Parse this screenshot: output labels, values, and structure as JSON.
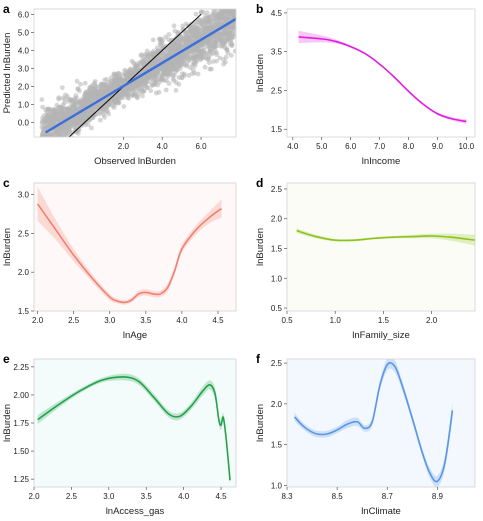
{
  "chart_data": [
    {
      "id": "a",
      "type": "scatter",
      "panel_label": "a",
      "xlabel": "Observed lnBurden",
      "ylabel": "Predicted lnBurden",
      "xlim": [
        -2.6,
        7.8
      ],
      "ylim": [
        -0.8,
        6.3
      ],
      "xticks": [
        "2.0",
        "4.0",
        "6.0"
      ],
      "xtick_values": [
        2,
        4,
        6
      ],
      "yticks": [
        "0.0",
        "1.0",
        "2.0",
        "3.0",
        "4.0",
        "5.0",
        "6.0"
      ],
      "ytick_values": [
        0,
        1,
        2,
        3,
        4,
        5,
        6
      ],
      "background": "#ffffff",
      "point_color": "#b5b5b5",
      "fit_line": {
        "color": "#3b6fdc",
        "x": [
          -2.0,
          7.8
        ],
        "y": [
          -0.55,
          5.75
        ]
      },
      "identity_line": {
        "color": "#111111",
        "x": [
          -0.8,
          6.0
        ],
        "y": [
          -0.8,
          6.0
        ]
      }
    },
    {
      "id": "b",
      "type": "line",
      "panel_label": "b",
      "xlabel": "lnIncome",
      "ylabel": "lnBurden",
      "xlim": [
        3.8,
        10.3
      ],
      "ylim": [
        1.3,
        4.6
      ],
      "xticks": [
        "4.0",
        "5.0",
        "6.0",
        "7.0",
        "8.0",
        "9.0",
        "10.0"
      ],
      "xtick_values": [
        4,
        5,
        6,
        7,
        8,
        9,
        10
      ],
      "yticks": [
        "1.5",
        "2.5",
        "3.5",
        "4.5"
      ],
      "ytick_values": [
        1.5,
        2.5,
        3.5,
        4.5
      ],
      "background": "#ffffff",
      "color": "#e01fe0",
      "band_color": "#e01fe0",
      "x": [
        4.2,
        5.0,
        5.5,
        6.0,
        6.5,
        7.0,
        7.5,
        8.0,
        8.5,
        9.0,
        9.5,
        10.0
      ],
      "y": [
        3.88,
        3.83,
        3.76,
        3.63,
        3.45,
        3.18,
        2.85,
        2.48,
        2.15,
        1.9,
        1.77,
        1.7
      ],
      "ci": [
        0.16,
        0.09,
        0.05,
        0.03,
        0.02,
        0.02,
        0.02,
        0.02,
        0.02,
        0.03,
        0.04,
        0.06
      ]
    },
    {
      "id": "c",
      "type": "line",
      "panel_label": "c",
      "xlabel": "lnAge",
      "ylabel": "lnBurden",
      "xlim": [
        1.95,
        4.75
      ],
      "ylim": [
        1.5,
        3.15
      ],
      "xticks": [
        "2.0",
        "2.5",
        "3.0",
        "3.5",
        "4.0",
        "4.5"
      ],
      "xtick_values": [
        2,
        2.5,
        3,
        3.5,
        4,
        4.5
      ],
      "yticks": [
        "1.5",
        "2.0",
        "2.5",
        "3.0"
      ],
      "ytick_values": [
        1.5,
        2.0,
        2.5,
        3.0
      ],
      "background": "#fff8f8",
      "color": "#f08070",
      "band_color": "#f08070",
      "x": [
        2.0,
        2.25,
        2.5,
        2.75,
        3.0,
        3.1,
        3.2,
        3.3,
        3.4,
        3.5,
        3.6,
        3.7,
        3.8,
        3.9,
        4.0,
        4.2,
        4.4,
        4.55
      ],
      "y": [
        2.88,
        2.55,
        2.22,
        1.93,
        1.68,
        1.63,
        1.61,
        1.64,
        1.72,
        1.74,
        1.72,
        1.72,
        1.8,
        2.02,
        2.3,
        2.55,
        2.72,
        2.82
      ],
      "ci": [
        0.22,
        0.13,
        0.08,
        0.05,
        0.04,
        0.03,
        0.03,
        0.03,
        0.04,
        0.04,
        0.04,
        0.04,
        0.05,
        0.05,
        0.05,
        0.06,
        0.08,
        0.12
      ]
    },
    {
      "id": "d",
      "type": "line",
      "panel_label": "d",
      "xlabel": "lnFamily_size",
      "ylabel": "lnBurden",
      "xlim": [
        0.5,
        2.45
      ],
      "ylim": [
        0.45,
        2.6
      ],
      "xticks": [
        "0.5",
        "1.0",
        "1.5",
        "2.0"
      ],
      "xtick_values": [
        0.5,
        1.0,
        1.5,
        2.0
      ],
      "yticks": [
        "0.5",
        "1.0",
        "1.5",
        "2.0",
        "2.5"
      ],
      "ytick_values": [
        0.5,
        1.0,
        1.5,
        2.0,
        2.5
      ],
      "background": "#fcfcf6",
      "color": "#8cc31e",
      "band_color": "#8cc31e",
      "x": [
        0.6,
        0.8,
        1.0,
        1.2,
        1.4,
        1.6,
        1.8,
        2.0,
        2.2,
        2.45
      ],
      "y": [
        1.8,
        1.7,
        1.64,
        1.64,
        1.67,
        1.69,
        1.7,
        1.71,
        1.69,
        1.64
      ],
      "ci": [
        0.04,
        0.03,
        0.02,
        0.02,
        0.02,
        0.02,
        0.03,
        0.04,
        0.06,
        0.09
      ]
    },
    {
      "id": "e",
      "type": "line",
      "panel_label": "e",
      "xlabel": "lnAccess_gas",
      "ylabel": "lnBurden",
      "xlim": [
        2.0,
        4.7
      ],
      "ylim": [
        1.18,
        2.32
      ],
      "xticks": [
        "2.0",
        "2.5",
        "3.0",
        "3.5",
        "4.0",
        "4.5"
      ],
      "xtick_values": [
        2,
        2.5,
        3,
        3.5,
        4,
        4.5
      ],
      "yticks": [
        "1.25",
        "1.50",
        "1.75",
        "2.00",
        "2.25"
      ],
      "ytick_values": [
        1.25,
        1.5,
        1.75,
        2.0,
        2.25
      ],
      "background": "#f4fbfb",
      "color": "#22a34a",
      "band_color": "#22a34a",
      "x": [
        2.05,
        2.3,
        2.6,
        2.9,
        3.2,
        3.4,
        3.6,
        3.8,
        3.95,
        4.1,
        4.25,
        4.35,
        4.42,
        4.47,
        4.5,
        4.53,
        4.57,
        4.62
      ],
      "y": [
        1.78,
        1.9,
        2.03,
        2.13,
        2.16,
        2.12,
        1.98,
        1.83,
        1.81,
        1.9,
        2.03,
        2.09,
        2.01,
        1.78,
        1.73,
        1.8,
        1.6,
        1.24
      ],
      "ci": [
        0.04,
        0.03,
        0.02,
        0.02,
        0.03,
        0.03,
        0.03,
        0.03,
        0.03,
        0.03,
        0.04,
        0.04,
        0.05,
        0.04,
        0.04,
        0.04,
        0.04,
        0.04
      ]
    },
    {
      "id": "f",
      "type": "line",
      "panel_label": "f",
      "xlabel": "lnClimate",
      "ylabel": "lnBurden",
      "xlim": [
        8.3,
        9.05
      ],
      "ylim": [
        0.98,
        2.55
      ],
      "xticks": [
        "8.3",
        "8.5",
        "8.7",
        "8.9"
      ],
      "xtick_values": [
        8.3,
        8.5,
        8.7,
        8.9
      ],
      "yticks": [
        "1.0",
        "1.5",
        "2.0",
        "2.5"
      ],
      "ytick_values": [
        1.0,
        1.5,
        2.0,
        2.5
      ],
      "background": "#f3f8ff",
      "color": "#5a96e6",
      "band_color": "#5a96e6",
      "x": [
        8.33,
        8.36,
        8.39,
        8.42,
        8.46,
        8.5,
        8.54,
        8.58,
        8.61,
        8.64,
        8.67,
        8.7,
        8.73,
        8.76,
        8.8,
        8.84,
        8.87,
        8.9,
        8.93,
        8.96
      ],
      "y": [
        1.84,
        1.74,
        1.67,
        1.63,
        1.63,
        1.68,
        1.75,
        1.78,
        1.7,
        1.78,
        2.22,
        2.48,
        2.46,
        2.22,
        1.82,
        1.4,
        1.15,
        1.05,
        1.28,
        1.92
      ],
      "ci": [
        0.05,
        0.04,
        0.04,
        0.04,
        0.04,
        0.04,
        0.05,
        0.05,
        0.04,
        0.05,
        0.06,
        0.07,
        0.07,
        0.06,
        0.05,
        0.05,
        0.06,
        0.07,
        0.08,
        0.1
      ]
    }
  ]
}
